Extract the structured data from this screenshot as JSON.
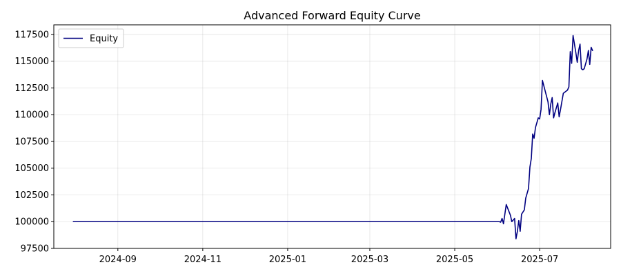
{
  "chart_data": {
    "type": "line",
    "title": "Advanced Forward Equity Curve",
    "xlabel": "",
    "ylabel": "",
    "grid": true,
    "legend": {
      "position": "upper-left"
    },
    "xlim": [
      "2024-07-17",
      "2025-08-21"
    ],
    "ylim": [
      97500,
      118400
    ],
    "x_ticks": [
      {
        "date": "2024-09-01",
        "label": "2024-09"
      },
      {
        "date": "2024-11-01",
        "label": "2024-11"
      },
      {
        "date": "2025-01-01",
        "label": "2025-01"
      },
      {
        "date": "2025-03-01",
        "label": "2025-03"
      },
      {
        "date": "2025-05-01",
        "label": "2025-05"
      },
      {
        "date": "2025-07-01",
        "label": "2025-07"
      }
    ],
    "y_ticks": [
      {
        "value": 97500,
        "label": "97500"
      },
      {
        "value": 100000,
        "label": "100000"
      },
      {
        "value": 102500,
        "label": "102500"
      },
      {
        "value": 105000,
        "label": "105000"
      },
      {
        "value": 107500,
        "label": "107500"
      },
      {
        "value": 110000,
        "label": "110000"
      },
      {
        "value": 112500,
        "label": "112500"
      },
      {
        "value": 115000,
        "label": "115000"
      },
      {
        "value": 117500,
        "label": "117500"
      }
    ],
    "series": [
      {
        "name": "Equity",
        "color": "#000080",
        "points": [
          [
            "2024-07-31",
            100000
          ],
          [
            "2025-05-31",
            100000
          ],
          [
            "2025-06-02",
            100000
          ],
          [
            "2025-06-03",
            99950
          ],
          [
            "2025-06-04",
            100300
          ],
          [
            "2025-06-05",
            99800
          ],
          [
            "2025-06-07",
            101600
          ],
          [
            "2025-06-10",
            100600
          ],
          [
            "2025-06-11",
            100000
          ],
          [
            "2025-06-13",
            100300
          ],
          [
            "2025-06-14",
            98400
          ],
          [
            "2025-06-15",
            99100
          ],
          [
            "2025-06-16",
            100100
          ],
          [
            "2025-06-17",
            99100
          ],
          [
            "2025-06-18",
            100700
          ],
          [
            "2025-06-20",
            101100
          ],
          [
            "2025-06-21",
            102200
          ],
          [
            "2025-06-23",
            103100
          ],
          [
            "2025-06-24",
            105100
          ],
          [
            "2025-06-25",
            105900
          ],
          [
            "2025-06-26",
            108200
          ],
          [
            "2025-06-27",
            107800
          ],
          [
            "2025-06-28",
            108800
          ],
          [
            "2025-06-30",
            109700
          ],
          [
            "2025-07-01",
            109600
          ],
          [
            "2025-07-02",
            110500
          ],
          [
            "2025-07-03",
            113200
          ],
          [
            "2025-07-04",
            112700
          ],
          [
            "2025-07-07",
            111200
          ],
          [
            "2025-07-08",
            110000
          ],
          [
            "2025-07-09",
            111000
          ],
          [
            "2025-07-10",
            111600
          ],
          [
            "2025-07-11",
            109700
          ],
          [
            "2025-07-12",
            110200
          ],
          [
            "2025-07-14",
            111100
          ],
          [
            "2025-07-15",
            109800
          ],
          [
            "2025-07-16",
            110500
          ],
          [
            "2025-07-18",
            112000
          ],
          [
            "2025-07-20",
            112200
          ],
          [
            "2025-07-21",
            112300
          ],
          [
            "2025-07-22",
            112600
          ],
          [
            "2025-07-23",
            115900
          ],
          [
            "2025-07-24",
            114800
          ],
          [
            "2025-07-25",
            117400
          ],
          [
            "2025-07-26",
            116600
          ],
          [
            "2025-07-27",
            115800
          ],
          [
            "2025-07-28",
            114900
          ],
          [
            "2025-07-29",
            116000
          ],
          [
            "2025-07-30",
            116600
          ],
          [
            "2025-07-31",
            114300
          ],
          [
            "2025-08-01",
            114200
          ],
          [
            "2025-08-02",
            114300
          ],
          [
            "2025-08-04",
            115200
          ],
          [
            "2025-08-05",
            116000
          ],
          [
            "2025-08-06",
            114700
          ],
          [
            "2025-08-07",
            116300
          ],
          [
            "2025-08-08",
            116000
          ]
        ]
      }
    ]
  }
}
